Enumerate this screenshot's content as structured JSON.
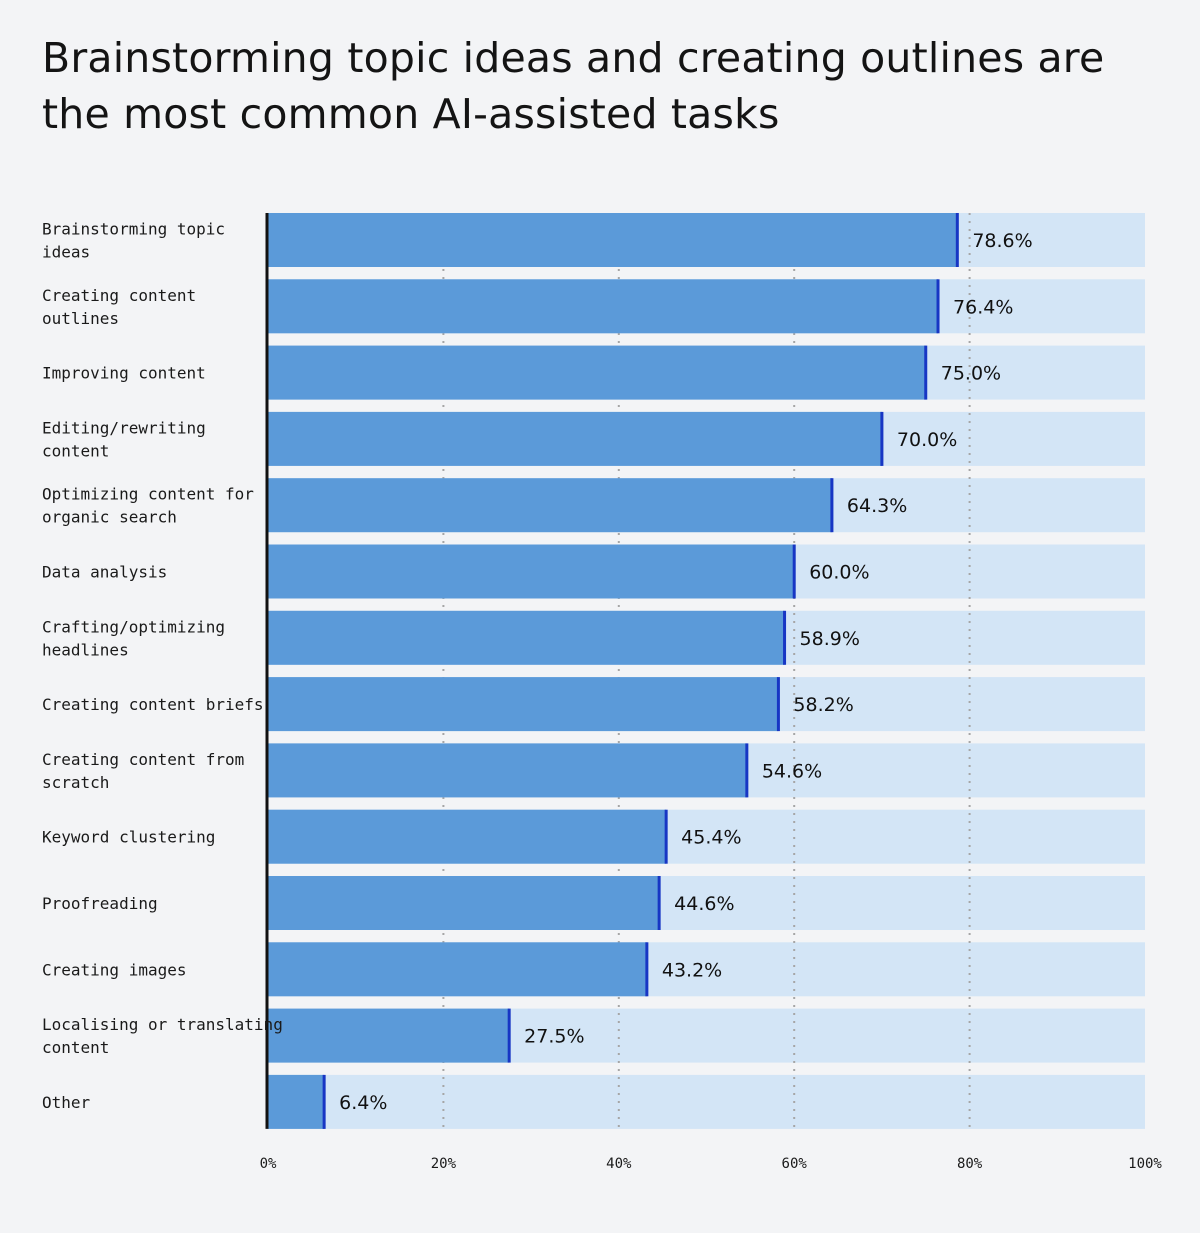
{
  "chart_data": {
    "type": "bar",
    "orientation": "horizontal",
    "title": "Brainstorming topic ideas and creating outlines are the most common AI-assisted tasks",
    "categories": [
      "Brainstorming topic ideas",
      "Creating content outlines",
      "Improving content",
      "Editing/rewriting content",
      "Optimizing content for organic search",
      "Data analysis",
      "Crafting/optimizing headlines",
      "Creating content briefs",
      "Creating content from scratch",
      "Keyword clustering",
      "Proofreading",
      "Creating images",
      "Localising or translating content",
      "Other"
    ],
    "category_label_lines": [
      [
        "Brainstorming topic",
        "ideas"
      ],
      [
        "Creating content",
        "outlines"
      ],
      [
        "Improving content"
      ],
      [
        "Editing/rewriting",
        "content"
      ],
      [
        "Optimizing content for",
        "organic search"
      ],
      [
        "Data analysis"
      ],
      [
        "Crafting/optimizing",
        "headlines"
      ],
      [
        "Creating content briefs"
      ],
      [
        "Creating content from",
        "scratch"
      ],
      [
        "Keyword clustering"
      ],
      [
        "Proofreading"
      ],
      [
        "Creating images"
      ],
      [
        "Localising or translating",
        "content"
      ],
      [
        "Other"
      ]
    ],
    "values": [
      78.6,
      76.4,
      75.0,
      70.0,
      64.3,
      60.0,
      58.9,
      58.2,
      54.6,
      45.4,
      44.6,
      43.2,
      27.5,
      6.4
    ],
    "value_labels": [
      "78.6%",
      "76.4%",
      "75.0%",
      "70.0%",
      "64.3%",
      "60.0%",
      "58.9%",
      "58.2%",
      "54.6%",
      "45.4%",
      "44.6%",
      "43.2%",
      "27.5%",
      "6.4%"
    ],
    "xlim": [
      0,
      100
    ],
    "x_ticks": [
      0,
      20,
      40,
      60,
      80,
      100
    ],
    "x_tick_labels": [
      "0%",
      "20%",
      "40%",
      "60%",
      "80%",
      "100%"
    ],
    "grid": "vertical dotted",
    "legend": "none",
    "xlabel": "",
    "ylabel": "",
    "colors": {
      "bar_fill": "#5b9ad9",
      "bar_track": "#d3e5f6",
      "bar_end_marker": "#1736c4",
      "grid": "#a6a6a6",
      "axis": "#111111",
      "background": "#f3f4f6"
    }
  }
}
